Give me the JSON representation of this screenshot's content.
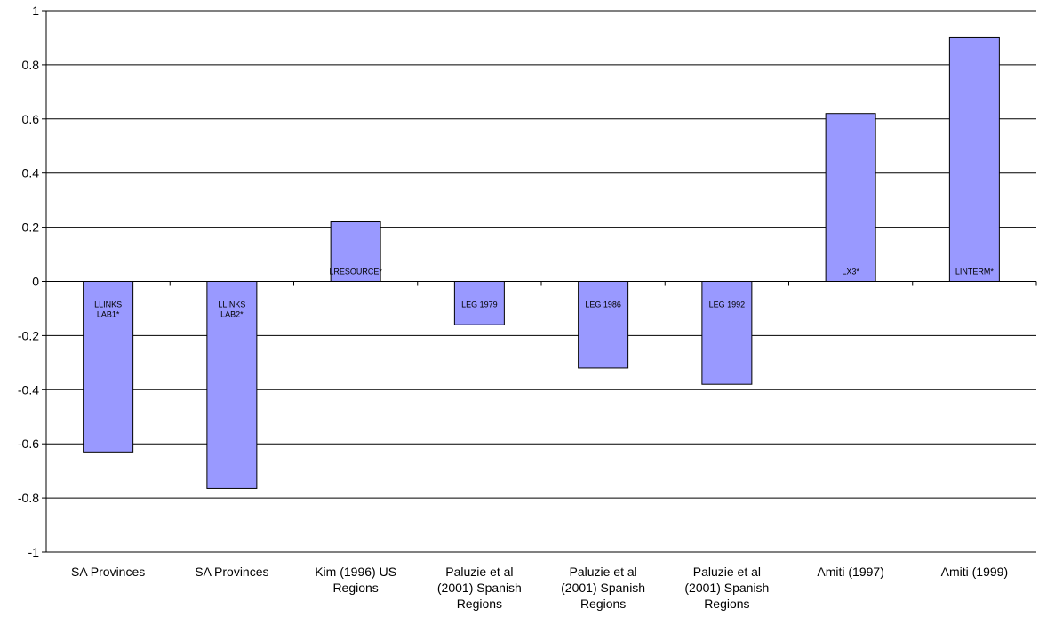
{
  "chart_data": {
    "type": "bar",
    "title": "",
    "xlabel": "",
    "ylabel": "",
    "ylim": [
      -1,
      1
    ],
    "y_ticks": [
      "1",
      "0.8",
      "0.6",
      "0.4",
      "0.2",
      "0",
      "-0.2",
      "-0.4",
      "-0.6",
      "-0.8",
      "-1"
    ],
    "grid": true,
    "bar_color": "#9999ff",
    "categories": [
      [
        "SA Provinces"
      ],
      [
        "SA Provinces"
      ],
      [
        "Kim (1996) US",
        "Regions"
      ],
      [
        "Paluzie et al",
        "(2001) Spanish",
        "Regions"
      ],
      [
        "Paluzie et al",
        "(2001) Spanish",
        "Regions"
      ],
      [
        "Paluzie et al",
        "(2001) Spanish",
        "Regions"
      ],
      [
        "Amiti (1997)"
      ],
      [
        "Amiti (1999)"
      ]
    ],
    "values": [
      -0.63,
      -0.765,
      0.22,
      -0.16,
      -0.32,
      -0.38,
      0.62,
      0.9
    ],
    "bar_labels": [
      [
        "LLINKS",
        "LAB1*"
      ],
      [
        "LLINKS",
        "LAB2*"
      ],
      [
        "LRESOURCE*"
      ],
      [
        "LEG 1979"
      ],
      [
        "LEG 1986"
      ],
      [
        "LEG 1992"
      ],
      [
        "LX3*"
      ],
      [
        "LINTERM*"
      ]
    ]
  }
}
